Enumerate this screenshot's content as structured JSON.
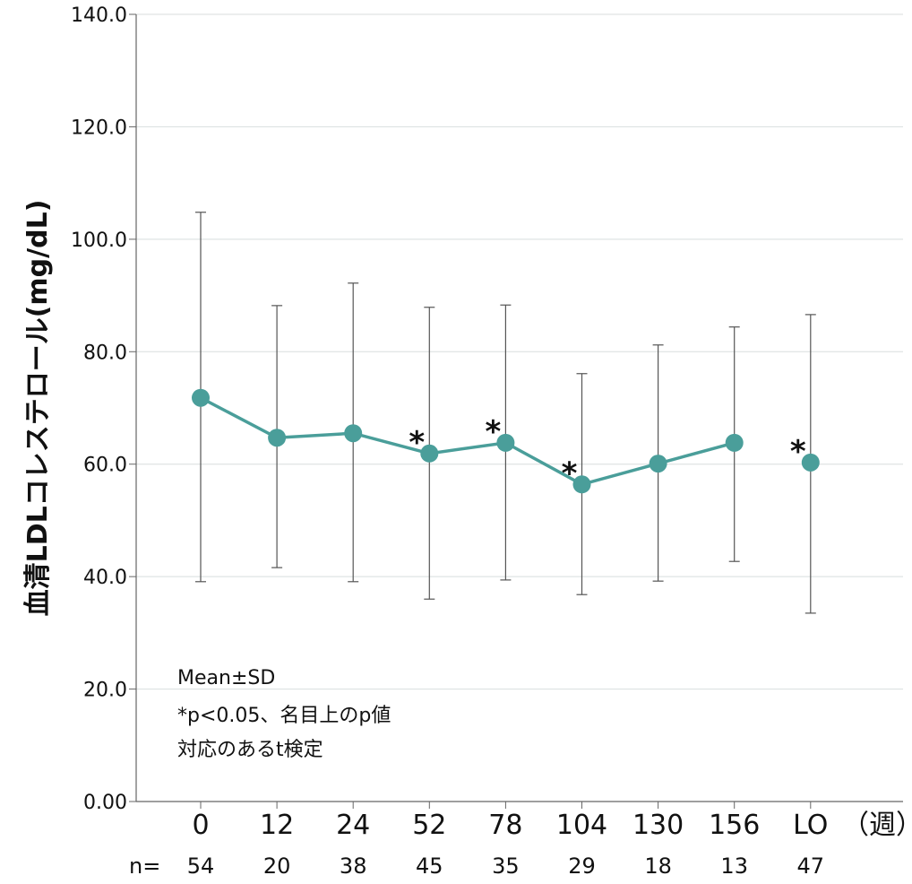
{
  "chart_data": {
    "type": "line",
    "ylabel": "血清LDLコレステロール(mg/dL)",
    "xlabel": "（週）",
    "categories": [
      "0",
      "12",
      "24",
      "52",
      "78",
      "104",
      "130",
      "156",
      "LO"
    ],
    "n_label": "n=",
    "n": [
      "54",
      "20",
      "38",
      "45",
      "35",
      "29",
      "18",
      "13",
      "47"
    ],
    "ylim": [
      0,
      140
    ],
    "yticks": [
      "0.00",
      "20.0",
      "40.0",
      "60.0",
      "80.0",
      "100.0",
      "120.0",
      "140.0"
    ],
    "ytick_values": [
      0,
      20,
      40,
      60,
      80,
      100,
      120,
      140
    ],
    "grid": true,
    "series": [
      {
        "values": [
          71.8,
          64.7,
          65.5,
          61.9,
          63.8,
          56.4,
          60.1,
          63.8,
          60.3
        ],
        "sd_upper": [
          104.8,
          88.2,
          92.2,
          87.9,
          88.3,
          76.1,
          81.2,
          84.4,
          86.6
        ],
        "sd_lower": [
          39.1,
          41.6,
          39.1,
          36.0,
          39.4,
          36.8,
          39.2,
          42.7,
          33.5
        ],
        "significant": [
          false,
          false,
          false,
          true,
          true,
          true,
          false,
          false,
          true
        ],
        "connected": [
          true,
          true,
          true,
          true,
          true,
          true,
          true,
          true,
          false
        ]
      }
    ],
    "significance_marker": "*",
    "notes": [
      "Mean±SD",
      "*p<0.05、名目上のp値",
      "対応のあるt検定"
    ],
    "colors": {
      "series": "#4a9e9a",
      "grid": "#d8dede",
      "errorbar": "#555555",
      "axis": "#666666"
    }
  }
}
